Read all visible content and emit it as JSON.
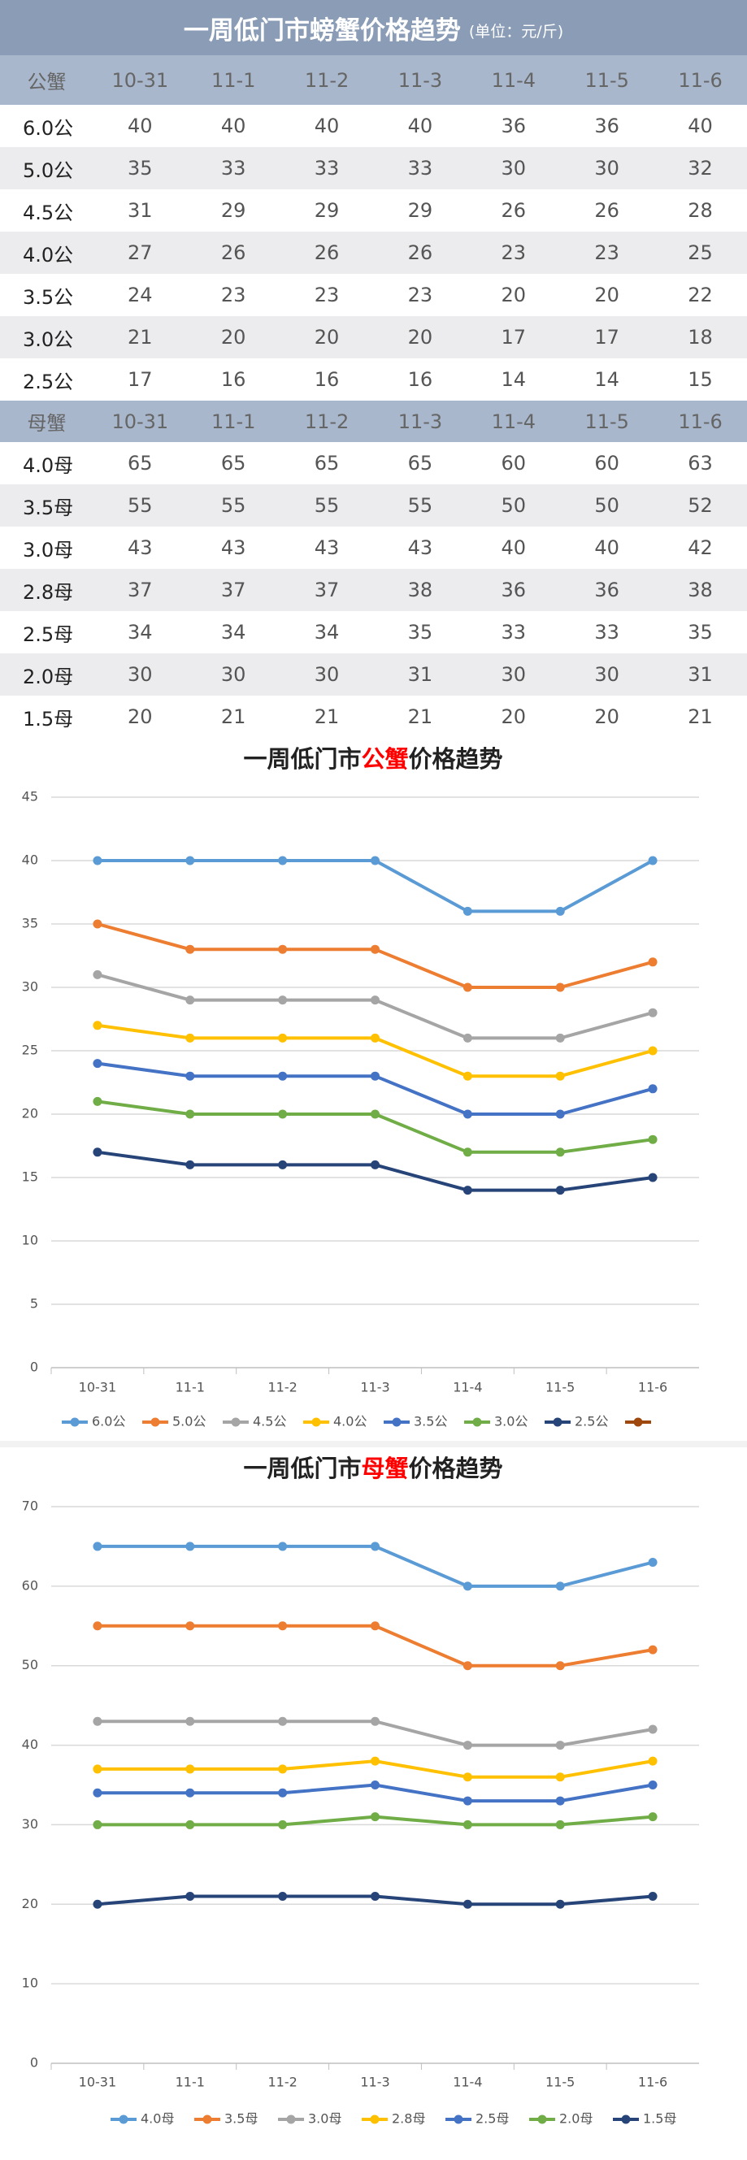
{
  "header": {
    "title": "一周低门市螃蟹价格趋势",
    "unit": "(单位：元/斤)"
  },
  "tables": [
    {
      "header": [
        "公蟹",
        "10-31",
        "11-1",
        "11-2",
        "11-3",
        "11-4",
        "11-5",
        "11-6"
      ],
      "rows": [
        [
          "6.0公",
          40,
          40,
          40,
          40,
          36,
          36,
          40
        ],
        [
          "5.0公",
          35,
          33,
          33,
          33,
          30,
          30,
          32
        ],
        [
          "4.5公",
          31,
          29,
          29,
          29,
          26,
          26,
          28
        ],
        [
          "4.0公",
          27,
          26,
          26,
          26,
          23,
          23,
          25
        ],
        [
          "3.5公",
          24,
          23,
          23,
          23,
          20,
          20,
          22
        ],
        [
          "3.0公",
          21,
          20,
          20,
          20,
          17,
          17,
          18
        ],
        [
          "2.5公",
          17,
          16,
          16,
          16,
          14,
          14,
          15
        ]
      ]
    },
    {
      "header": [
        "母蟹",
        "10-31",
        "11-1",
        "11-2",
        "11-3",
        "11-4",
        "11-5",
        "11-6"
      ],
      "rows": [
        [
          "4.0母",
          65,
          65,
          65,
          65,
          60,
          60,
          63
        ],
        [
          "3.5母",
          55,
          55,
          55,
          55,
          50,
          50,
          52
        ],
        [
          "3.0母",
          43,
          43,
          43,
          43,
          40,
          40,
          42
        ],
        [
          "2.8母",
          37,
          37,
          37,
          38,
          36,
          36,
          38
        ],
        [
          "2.5母",
          34,
          34,
          34,
          35,
          33,
          33,
          35
        ],
        [
          "2.0母",
          30,
          30,
          30,
          31,
          30,
          30,
          31
        ],
        [
          "1.5母",
          20,
          21,
          21,
          21,
          20,
          20,
          21
        ]
      ]
    }
  ],
  "chart_data": [
    {
      "type": "line",
      "title": [
        "一周低门市",
        "公蟹",
        "价格趋势"
      ],
      "categories": [
        "10-31",
        "11-1",
        "11-2",
        "11-3",
        "11-4",
        "11-5",
        "11-6"
      ],
      "ylim": [
        0,
        45
      ],
      "yticks": [
        0,
        5,
        10,
        15,
        20,
        25,
        30,
        35,
        40,
        45
      ],
      "grid": true,
      "series": [
        {
          "name": "6.0公",
          "color": "#5b9bd5",
          "values": [
            40,
            40,
            40,
            40,
            36,
            36,
            40
          ]
        },
        {
          "name": "5.0公",
          "color": "#ed7d31",
          "values": [
            35,
            33,
            33,
            33,
            30,
            30,
            32
          ]
        },
        {
          "name": "4.5公",
          "color": "#a5a5a5",
          "values": [
            31,
            29,
            29,
            29,
            26,
            26,
            28
          ]
        },
        {
          "name": "4.0公",
          "color": "#ffc000",
          "values": [
            27,
            26,
            26,
            26,
            23,
            23,
            25
          ]
        },
        {
          "name": "3.5公",
          "color": "#4472c4",
          "values": [
            24,
            23,
            23,
            23,
            20,
            20,
            22
          ]
        },
        {
          "name": "3.0公",
          "color": "#70ad47",
          "values": [
            21,
            20,
            20,
            20,
            17,
            17,
            18
          ]
        },
        {
          "name": "2.5公",
          "color": "#264478",
          "values": [
            17,
            16,
            16,
            16,
            14,
            14,
            15
          ]
        },
        {
          "name": null,
          "color": "#9e480e",
          "values": [
            null,
            null,
            null,
            null,
            null,
            null,
            null
          ]
        }
      ]
    },
    {
      "type": "line",
      "title": [
        "一周低门市",
        "母蟹",
        "价格趋势"
      ],
      "categories": [
        "10-31",
        "11-1",
        "11-2",
        "11-3",
        "11-4",
        "11-5",
        "11-6"
      ],
      "ylim": [
        0,
        70
      ],
      "yticks": [
        0,
        10,
        20,
        30,
        40,
        50,
        60,
        70
      ],
      "grid": true,
      "series": [
        {
          "name": "4.0母",
          "color": "#5b9bd5",
          "values": [
            65,
            65,
            65,
            65,
            60,
            60,
            63
          ]
        },
        {
          "name": "3.5母",
          "color": "#ed7d31",
          "values": [
            55,
            55,
            55,
            55,
            50,
            50,
            52
          ]
        },
        {
          "name": "3.0母",
          "color": "#a5a5a5",
          "values": [
            43,
            43,
            43,
            43,
            40,
            40,
            42
          ]
        },
        {
          "name": "2.8母",
          "color": "#ffc000",
          "values": [
            37,
            37,
            37,
            38,
            36,
            36,
            38
          ]
        },
        {
          "name": "2.5母",
          "color": "#4472c4",
          "values": [
            34,
            34,
            34,
            35,
            33,
            33,
            35
          ]
        },
        {
          "name": "2.0母",
          "color": "#70ad47",
          "values": [
            30,
            30,
            30,
            31,
            30,
            30,
            31
          ]
        },
        {
          "name": "1.5母",
          "color": "#264478",
          "values": [
            20,
            21,
            21,
            21,
            20,
            20,
            21
          ]
        }
      ]
    }
  ]
}
